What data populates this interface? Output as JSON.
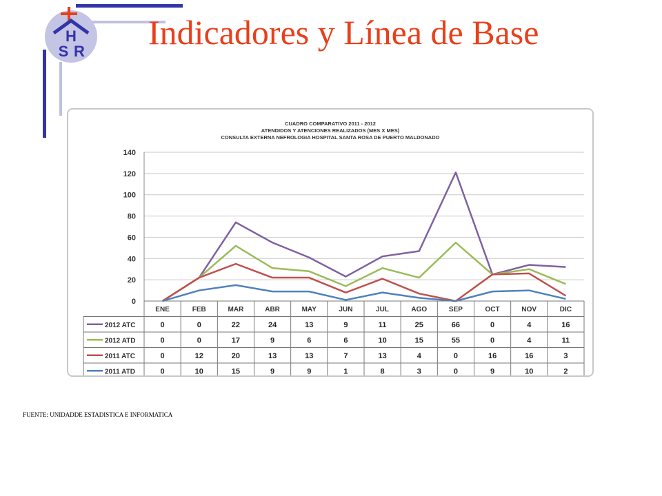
{
  "title": "Indicadores y Línea de Base",
  "footer": "FUENTE: UNIDADDE ESTADISTICA E INFORMATICA",
  "logo": {
    "letters": [
      "H",
      "S",
      "R"
    ]
  },
  "colors": {
    "title": "#e8401c",
    "accent_blue": "#3333aa",
    "accent_light": "#c0c0e0"
  },
  "chart_data": {
    "type": "line",
    "title": [
      "CUADRO COMPARATIVO 2011 - 2012",
      "ATENDIDOS Y ATENCIONES  REALIZADOS (MES X MES)",
      "CONSULTA EXTERNA NEFROLOGIA HOSPITAL SANTA ROSA DE PUERTO MALDONADO"
    ],
    "stacked": true,
    "ylim": [
      0,
      140
    ],
    "yticks": [
      0,
      20,
      40,
      60,
      80,
      100,
      120,
      140
    ],
    "grid": true,
    "categories": [
      "ENE",
      "FEB",
      "MAR",
      "ABR",
      "MAY",
      "JUN",
      "JUL",
      "AGO",
      "SEP",
      "OCT",
      "NOV",
      "DIC"
    ],
    "series": [
      {
        "name": "2012 ATC",
        "color": "#7f60a0",
        "values": [
          0,
          0,
          22,
          24,
          13,
          9,
          11,
          25,
          66,
          0,
          4,
          16
        ]
      },
      {
        "name": "2012 ATD",
        "color": "#9bbb59",
        "values": [
          0,
          0,
          17,
          9,
          6,
          6,
          10,
          15,
          55,
          0,
          4,
          11
        ]
      },
      {
        "name": "2011 ATC",
        "color": "#c0504d",
        "values": [
          0,
          12,
          20,
          13,
          13,
          7,
          13,
          4,
          0,
          16,
          16,
          3
        ]
      },
      {
        "name": "2011 ATD",
        "color": "#4f81bd",
        "values": [
          0,
          10,
          15,
          9,
          9,
          1,
          8,
          3,
          0,
          9,
          10,
          2
        ]
      }
    ]
  }
}
